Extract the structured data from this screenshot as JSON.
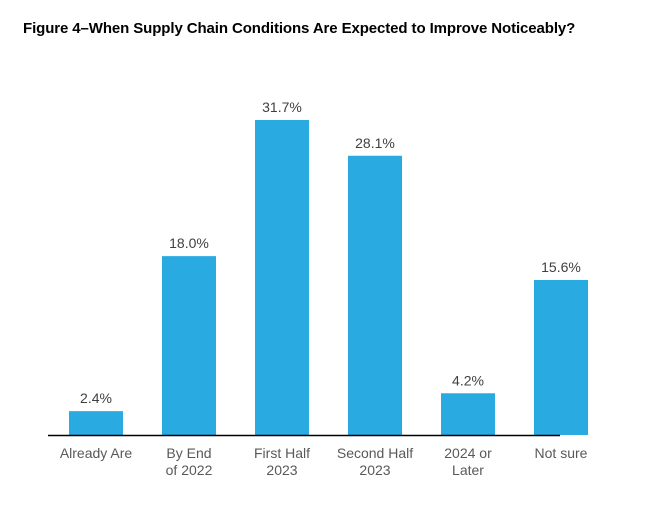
{
  "chart_data": {
    "type": "bar",
    "title": "Figure 4–When Supply Chain Conditions Are Expected to Improve Noticeably?",
    "categories": [
      [
        "Already Are"
      ],
      [
        "By End",
        "of 2022"
      ],
      [
        "First Half",
        "2023"
      ],
      [
        "Second Half",
        "2023"
      ],
      [
        "2024 or",
        "Later"
      ],
      [
        "Not sure"
      ]
    ],
    "values": [
      2.4,
      18.0,
      31.7,
      28.1,
      4.2,
      15.6
    ],
    "value_labels": [
      "2.4%",
      "18.0%",
      "31.7%",
      "28.1%",
      "4.2%",
      "15.6%"
    ],
    "ylim": [
      0,
      32
    ],
    "grid": false,
    "legend": "none",
    "colors": {
      "bar": "#29ABE2",
      "axis": "#000000",
      "value_text": "#404040",
      "tick_text": "#595959"
    }
  }
}
